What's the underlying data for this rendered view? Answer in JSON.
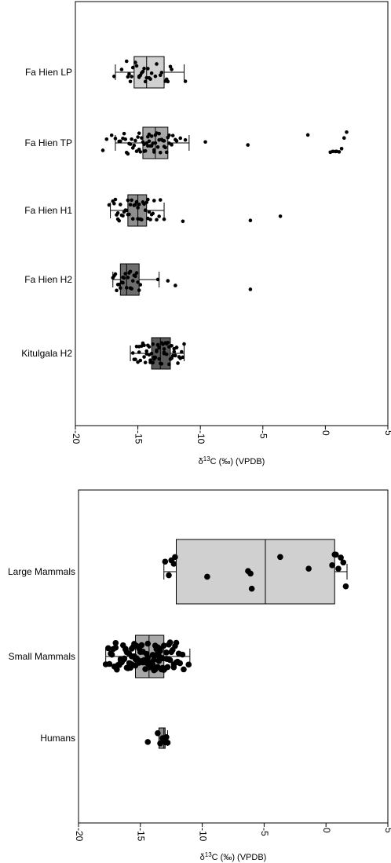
{
  "chart_data": [
    {
      "type": "box",
      "xlabel_html": "δ<sup>13</sup>C (‰) (VPDB)",
      "xlabel": "δ13C (‰) (VPDB)",
      "xlim": [
        -20,
        5
      ],
      "xticks": [
        "-20",
        "-15",
        "-10",
        "-5",
        "0",
        "5"
      ],
      "xtick_values": [
        -20,
        -15,
        -10,
        -5,
        0,
        5
      ],
      "categories": [
        "Fa Hien LP",
        "Fa Hien TP",
        "Fa Hien H1",
        "Fa Hien H2",
        "Kitulgala H2"
      ],
      "box_colors": [
        "#d0d0d0",
        "#a8a8a8",
        "#8f8f8f",
        "#6e6e6e",
        "#5a5a5a"
      ],
      "boxes": [
        {
          "label": "Fa Hien LP",
          "whisker_low": -16.8,
          "q1": -15.3,
          "median": -14.3,
          "q3": -12.9,
          "whisker_high": -11.3
        },
        {
          "label": "Fa Hien TP",
          "whisker_low": -16.8,
          "q1": -14.6,
          "median": -13.6,
          "q3": -12.6,
          "whisker_high": -10.9
        },
        {
          "label": "Fa Hien H1",
          "whisker_low": -17.2,
          "q1": -15.8,
          "median": -15.0,
          "q3": -14.3,
          "whisker_high": -12.9
        },
        {
          "label": "Fa Hien H2",
          "whisker_low": -17.0,
          "q1": -16.4,
          "median": -15.9,
          "q3": -14.9,
          "whisker_high": -13.3
        },
        {
          "label": "Kitulgala H2",
          "whisker_low": -15.6,
          "q1": -13.9,
          "median": -13.2,
          "q3": -12.4,
          "whisker_high": -11.3
        }
      ],
      "points": [
        {
          "group": "Fa Hien LP",
          "x": [
            -15.9,
            -15.6,
            -15.4,
            -15.1,
            -14.9,
            -14.7,
            -14.5,
            -14.3,
            -14.1,
            -13.9,
            -13.6,
            -13.2,
            -12.7,
            -12.4,
            -16.3,
            -15.8,
            -15.5,
            -15.2,
            -14.9,
            -14.6,
            -14.4,
            -14.0,
            -13.5,
            -13.1,
            -12.6,
            -16.9,
            -14.8,
            -15.7,
            -11.2,
            -12.8,
            -12.3,
            -14.2
          ]
        },
        {
          "group": "Fa Hien TP",
          "x": [
            -17.8,
            -17.5,
            -17.1,
            -16.8,
            -16.5,
            -16.2,
            -15.9,
            -15.6,
            -15.4,
            -15.1,
            -14.9,
            -14.7,
            -14.5,
            -14.3,
            -14.1,
            -13.9,
            -13.7,
            -13.5,
            -13.3,
            -13.1,
            -12.9,
            -12.7,
            -12.5,
            -12.2,
            -11.9,
            -11.6,
            -11.2,
            -16.4,
            -16.0,
            -15.7,
            -15.3,
            -15.0,
            -14.8,
            -14.6,
            -14.4,
            -14.2,
            -14.0,
            -13.8,
            -13.6,
            -13.4,
            -13.2,
            -13.0,
            -12.8,
            -12.6,
            -12.3,
            -12.0,
            -15.5,
            -15.2,
            -14.9,
            -14.5,
            -14.1,
            -13.7,
            -13.3,
            -12.9,
            -12.5,
            -16.1,
            -15.8,
            -14.2,
            -13.9,
            -13.6,
            -9.6,
            -6.2,
            -1.4,
            0.4,
            0.6,
            0.8,
            0.9,
            1.1,
            1.3,
            1.5,
            1.7
          ]
        },
        {
          "group": "Fa Hien H1",
          "x": [
            -17.3,
            -17.0,
            -16.8,
            -16.6,
            -16.4,
            -16.2,
            -16.0,
            -15.8,
            -15.6,
            -15.4,
            -15.2,
            -15.0,
            -14.8,
            -14.6,
            -14.4,
            -14.2,
            -14.0,
            -13.8,
            -13.5,
            -13.2,
            -12.9,
            -16.9,
            -16.5,
            -16.1,
            -15.7,
            -15.3,
            -14.9,
            -14.5,
            -14.1,
            -13.7,
            -13.3,
            -16.7,
            -16.3,
            -15.9,
            -15.5,
            -15.1,
            -14.7,
            -14.3,
            -13.9,
            -16.6,
            -15.8,
            -15.0,
            -14.2,
            -11.4,
            -6.0,
            -3.6
          ]
        },
        {
          "group": "Fa Hien H2",
          "x": [
            -17.0,
            -16.8,
            -16.6,
            -16.4,
            -16.2,
            -16.0,
            -15.8,
            -15.6,
            -15.4,
            -15.2,
            -15.0,
            -14.8,
            -16.9,
            -16.5,
            -16.1,
            -15.7,
            -15.3,
            -14.9,
            -16.7,
            -16.3,
            -15.9,
            -15.5,
            -15.1,
            -16.2,
            -15.6,
            -13.4,
            -12.6,
            -12.0,
            -6.0
          ]
        },
        {
          "group": "Kitulgala H2",
          "x": [
            -15.4,
            -15.1,
            -14.9,
            -14.7,
            -14.5,
            -14.3,
            -14.1,
            -13.9,
            -13.7,
            -13.5,
            -13.3,
            -13.1,
            -12.9,
            -12.7,
            -12.5,
            -12.3,
            -12.1,
            -11.9,
            -11.7,
            -11.5,
            -11.3,
            -15.2,
            -14.8,
            -14.4,
            -14.0,
            -13.6,
            -13.2,
            -12.8,
            -12.4,
            -12.0,
            -11.6,
            -15.0,
            -14.6,
            -14.2,
            -13.8,
            -13.4,
            -13.0,
            -12.6,
            -12.2,
            -11.8,
            -14.9,
            -14.5,
            -14.1,
            -13.7,
            -13.3,
            -12.9,
            -12.5,
            -12.1,
            -11.4,
            -15.3,
            -14.3,
            -13.5,
            -12.7,
            -11.9,
            -14.0,
            -13.1,
            -12.3,
            -13.8,
            -12.9,
            -13.4
          ]
        }
      ]
    },
    {
      "type": "box",
      "xlabel_html": "δ<sup>13</sup>C (‰) (VPDB)",
      "xlabel": "δ13C (‰) (VPDB)",
      "xlim": [
        -20,
        5
      ],
      "xticks": [
        "-20",
        "-15",
        "-10",
        "-5",
        "0",
        "5"
      ],
      "xtick_values": [
        -20,
        -15,
        -10,
        -5,
        0,
        5
      ],
      "categories": [
        "Large Mammals",
        "Small Mammals",
        "Humans"
      ],
      "box_colors": [
        "#d0d0d0",
        "#a8a8a8",
        "#8a8a8a"
      ],
      "boxes": [
        {
          "label": "Large Mammals",
          "whisker_low": -13.1,
          "q1": -12.1,
          "median": -4.9,
          "q3": 0.7,
          "whisker_high": 1.7
        },
        {
          "label": "Small Mammals",
          "whisker_low": -17.8,
          "q1": -15.4,
          "median": -14.3,
          "q3": -13.1,
          "whisker_high": -11.0
        },
        {
          "label": "Humans",
          "whisker_low": -13.5,
          "q1": -13.5,
          "median": -13.1,
          "q3": -13.0,
          "whisker_high": -12.8
        }
      ],
      "points": [
        {
          "group": "Large Mammals",
          "x": [
            -13.0,
            -12.7,
            -12.5,
            -12.2,
            -12.3,
            -9.6,
            -6.1,
            -6.3,
            -6.0,
            -3.7,
            -1.4,
            0.5,
            0.7,
            0.8,
            1.0,
            1.2,
            1.4,
            1.6
          ]
        },
        {
          "group": "Small Mammals",
          "x": [
            -17.8,
            -17.5,
            -17.3,
            -17.1,
            -16.9,
            -16.7,
            -16.5,
            -16.3,
            -16.1,
            -15.9,
            -15.7,
            -15.5,
            -15.3,
            -15.1,
            -14.9,
            -14.7,
            -14.5,
            -14.3,
            -14.1,
            -13.9,
            -13.7,
            -13.5,
            -13.3,
            -13.1,
            -12.9,
            -12.7,
            -12.5,
            -12.3,
            -12.1,
            -11.8,
            -11.5,
            -11.1,
            -17.6,
            -17.2,
            -16.8,
            -16.4,
            -16.0,
            -15.6,
            -15.2,
            -14.8,
            -14.4,
            -14.0,
            -13.6,
            -13.2,
            -12.8,
            -12.4,
            -12.0,
            -11.6,
            -17.4,
            -17.0,
            -16.6,
            -16.2,
            -15.8,
            -15.4,
            -15.0,
            -14.6,
            -14.2,
            -13.8,
            -13.4,
            -13.0,
            -12.6,
            -12.2,
            -11.9,
            -17.0,
            -16.6,
            -16.1,
            -15.6,
            -15.1,
            -14.6,
            -14.1,
            -13.6,
            -13.1,
            -12.6,
            -12.1,
            -16.8,
            -16.3,
            -15.8,
            -15.3,
            -14.8,
            -14.3,
            -13.8,
            -13.3,
            -12.8,
            -12.3,
            -16.5,
            -15.9,
            -15.4,
            -14.9,
            -14.4,
            -13.9,
            -13.4,
            -12.9,
            -16.2,
            -15.7,
            -15.2,
            -14.7,
            -14.2,
            -13.7,
            -13.2,
            -15.5,
            -15.0,
            -14.5,
            -14.0,
            -13.5
          ]
        },
        {
          "group": "Humans",
          "x": [
            -14.4,
            -13.6,
            -13.4,
            -13.2,
            -13.0,
            -12.9,
            -12.8
          ]
        }
      ]
    }
  ]
}
